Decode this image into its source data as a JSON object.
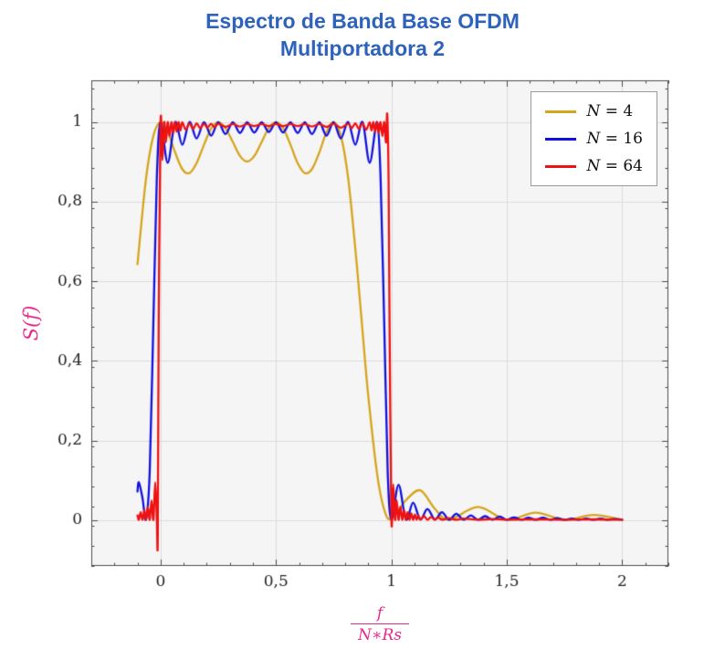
{
  "title": {
    "line1": "Espectro de Banda Base OFDM",
    "line2": "Multiportadora 2",
    "color": "#2E63BC"
  },
  "chart_data": {
    "type": "line",
    "title": "Espectro de Banda Base OFDM Multiportadora 2",
    "xlabel": "f/(N∗Rs)",
    "ylabel": "S(f)",
    "xlabel_numerator": "f",
    "xlabel_denominator": "N∗Rs",
    "legend_position": "top-right",
    "grid": true,
    "axes": {
      "xlim": [
        -0.3,
        2.2
      ],
      "ylim": [
        -0.115,
        1.105
      ],
      "x_ticks": [
        {
          "v": 0.0,
          "label": "0"
        },
        {
          "v": 0.5,
          "label": "0,5"
        },
        {
          "v": 1.0,
          "label": "1"
        },
        {
          "v": 1.5,
          "label": "1,5"
        },
        {
          "v": 2.0,
          "label": "2"
        }
      ],
      "y_ticks": [
        {
          "v": 0.0,
          "label": "0"
        },
        {
          "v": 0.2,
          "label": "0,2"
        },
        {
          "v": 0.4,
          "label": "0,4"
        },
        {
          "v": 0.6,
          "label": "0,6"
        },
        {
          "v": 0.8,
          "label": "0,8"
        },
        {
          "v": 1.0,
          "label": "1"
        }
      ],
      "x_minor_step": 0.1,
      "y_minor_step": 0.05,
      "label_color": "#E7298A",
      "plot_bg": "#F5F5F5",
      "grid_color": "#DCDCDC",
      "frame_color": "#4D4D4D",
      "tick_label_color": "#222222"
    },
    "series": [
      {
        "name": "N = 4",
        "color": "#D6A51E",
        "points": [
          [
            -0.1,
            0.643
          ],
          [
            -0.063,
            0.858
          ],
          [
            -0.031,
            0.966
          ],
          [
            0.0,
            1.0
          ],
          [
            0.031,
            0.975
          ],
          [
            0.063,
            0.924
          ],
          [
            0.094,
            0.882
          ],
          [
            0.125,
            0.872
          ],
          [
            0.156,
            0.897
          ],
          [
            0.188,
            0.943
          ],
          [
            0.219,
            0.984
          ],
          [
            0.25,
            1.0
          ],
          [
            0.281,
            0.985
          ],
          [
            0.313,
            0.95
          ],
          [
            0.344,
            0.915
          ],
          [
            0.375,
            0.901
          ],
          [
            0.406,
            0.915
          ],
          [
            0.438,
            0.95
          ],
          [
            0.469,
            0.985
          ],
          [
            0.5,
            1.0
          ],
          [
            0.531,
            0.985
          ],
          [
            0.563,
            0.943
          ],
          [
            0.594,
            0.897
          ],
          [
            0.625,
            0.872
          ],
          [
            0.656,
            0.882
          ],
          [
            0.688,
            0.924
          ],
          [
            0.719,
            0.975
          ],
          [
            0.75,
            1.0
          ],
          [
            0.781,
            0.966
          ],
          [
            0.813,
            0.858
          ],
          [
            0.85,
            0.643
          ],
          [
            0.875,
            0.475
          ],
          [
            0.9,
            0.311
          ],
          [
            0.938,
            0.117
          ],
          [
            0.969,
            0.026
          ],
          [
            1.0,
            0.003
          ],
          [
            1.063,
            0.05
          ],
          [
            1.125,
            0.075
          ],
          [
            1.188,
            0.029
          ],
          [
            1.25,
            0.001
          ],
          [
            1.375,
            0.033
          ],
          [
            1.5,
            0.001
          ],
          [
            1.625,
            0.019
          ],
          [
            1.75,
            0.001
          ],
          [
            1.875,
            0.013
          ],
          [
            2.0,
            0.001
          ]
        ]
      },
      {
        "name": "N = 16",
        "color": "#1010E0",
        "points": [
          [
            -0.1,
            0.072
          ],
          [
            -0.094,
            0.095
          ],
          [
            -0.078,
            0.055
          ],
          [
            -0.063,
            0.002
          ],
          [
            -0.047,
            0.122
          ],
          [
            -0.031,
            0.5
          ],
          [
            -0.016,
            0.863
          ],
          [
            0.0,
            1.0
          ],
          [
            0.031,
            0.898
          ],
          [
            0.063,
            1.0
          ],
          [
            0.094,
            0.943
          ],
          [
            0.125,
            1.0
          ],
          [
            0.156,
            0.959
          ],
          [
            0.188,
            1.0
          ],
          [
            0.219,
            0.966
          ],
          [
            0.25,
            1.0
          ],
          [
            0.281,
            0.97
          ],
          [
            0.313,
            1.0
          ],
          [
            0.344,
            0.973
          ],
          [
            0.375,
            1.0
          ],
          [
            0.406,
            0.974
          ],
          [
            0.438,
            1.0
          ],
          [
            0.469,
            0.975
          ],
          [
            0.5,
            1.0
          ],
          [
            0.531,
            0.974
          ],
          [
            0.563,
            1.0
          ],
          [
            0.594,
            0.973
          ],
          [
            0.625,
            1.0
          ],
          [
            0.656,
            0.97
          ],
          [
            0.688,
            1.0
          ],
          [
            0.719,
            0.966
          ],
          [
            0.75,
            1.0
          ],
          [
            0.781,
            0.959
          ],
          [
            0.813,
            1.0
          ],
          [
            0.844,
            0.943
          ],
          [
            0.875,
            1.0
          ],
          [
            0.906,
            0.898
          ],
          [
            0.938,
            1.0
          ],
          [
            0.953,
            0.863
          ],
          [
            0.969,
            0.493
          ],
          [
            0.984,
            0.122
          ],
          [
            1.0,
            0.002
          ],
          [
            1.031,
            0.089
          ],
          [
            1.063,
            0.002
          ],
          [
            1.094,
            0.044
          ],
          [
            1.125,
            0.002
          ],
          [
            1.156,
            0.028
          ],
          [
            1.188,
            0.002
          ],
          [
            1.219,
            0.02
          ],
          [
            1.25,
            0.001
          ],
          [
            1.281,
            0.016
          ],
          [
            1.313,
            0.001
          ],
          [
            1.344,
            0.012
          ],
          [
            1.375,
            0.001
          ],
          [
            1.406,
            0.01
          ],
          [
            1.438,
            0.001
          ],
          [
            1.469,
            0.009
          ],
          [
            1.5,
            0.001
          ],
          [
            1.531,
            0.007
          ],
          [
            1.563,
            0.001
          ],
          [
            1.594,
            0.006
          ],
          [
            1.625,
            0.001
          ],
          [
            1.656,
            0.006
          ],
          [
            1.688,
            0.001
          ],
          [
            1.719,
            0.005
          ],
          [
            1.75,
            0.001
          ],
          [
            1.781,
            0.004
          ],
          [
            1.813,
            0.001
          ],
          [
            1.844,
            0.004
          ],
          [
            1.875,
            0.001
          ],
          [
            1.906,
            0.004
          ],
          [
            1.938,
            0.001
          ],
          [
            1.969,
            0.003
          ],
          [
            2.0,
            0.001
          ]
        ]
      },
      {
        "name": "N = 64",
        "color": "#EE1212",
        "points": [
          [
            -0.1,
            0.012
          ],
          [
            -0.094,
            0.001
          ],
          [
            -0.086,
            0.02
          ],
          [
            -0.078,
            0.001
          ],
          [
            -0.07,
            0.025
          ],
          [
            -0.063,
            0.001
          ],
          [
            -0.055,
            0.034
          ],
          [
            -0.047,
            0.001
          ],
          [
            -0.039,
            0.05
          ],
          [
            -0.031,
            0.001
          ],
          [
            -0.023,
            0.095
          ],
          [
            -0.016,
            0.001
          ],
          [
            -0.012,
            -0.045
          ],
          [
            -0.008,
            0.5
          ],
          [
            0.0,
            1.0
          ],
          [
            0.008,
            0.904
          ],
          [
            0.016,
            1.0
          ],
          [
            0.023,
            0.949
          ],
          [
            0.031,
            1.0
          ],
          [
            0.039,
            0.965
          ],
          [
            0.047,
            1.0
          ],
          [
            0.055,
            0.973
          ],
          [
            0.063,
            1.0
          ],
          [
            0.07,
            0.976
          ],
          [
            0.078,
            1.0
          ],
          [
            0.086,
            0.979
          ],
          [
            0.094,
            1.0
          ],
          [
            0.109,
            0.981
          ],
          [
            0.125,
            0.997
          ],
          [
            0.141,
            0.983
          ],
          [
            0.156,
            0.997
          ],
          [
            0.172,
            0.985
          ],
          [
            0.188,
            0.996
          ],
          [
            0.203,
            0.986
          ],
          [
            0.219,
            0.996
          ],
          [
            0.234,
            0.987
          ],
          [
            0.25,
            0.996
          ],
          [
            0.281,
            0.988
          ],
          [
            0.313,
            0.995
          ],
          [
            0.344,
            0.989
          ],
          [
            0.375,
            0.995
          ],
          [
            0.406,
            0.99
          ],
          [
            0.438,
            0.995
          ],
          [
            0.469,
            0.99
          ],
          [
            0.5,
            0.995
          ],
          [
            0.531,
            0.99
          ],
          [
            0.563,
            0.995
          ],
          [
            0.594,
            0.99
          ],
          [
            0.625,
            0.995
          ],
          [
            0.656,
            0.989
          ],
          [
            0.688,
            0.995
          ],
          [
            0.719,
            0.988
          ],
          [
            0.75,
            0.996
          ],
          [
            0.781,
            0.986
          ],
          [
            0.813,
            0.996
          ],
          [
            0.828,
            0.985
          ],
          [
            0.844,
            0.997
          ],
          [
            0.859,
            0.983
          ],
          [
            0.875,
            0.997
          ],
          [
            0.891,
            0.981
          ],
          [
            0.906,
            1.0
          ],
          [
            0.914,
            0.979
          ],
          [
            0.922,
            1.0
          ],
          [
            0.93,
            0.976
          ],
          [
            0.938,
            1.0
          ],
          [
            0.945,
            0.973
          ],
          [
            0.953,
            1.0
          ],
          [
            0.961,
            0.965
          ],
          [
            0.969,
            1.0
          ],
          [
            0.977,
            0.949
          ],
          [
            0.982,
            1.02
          ],
          [
            0.988,
            0.85
          ],
          [
            0.992,
            0.5
          ],
          [
            1.0,
            0.001
          ],
          [
            1.008,
            0.09
          ],
          [
            1.016,
            0.001
          ],
          [
            1.023,
            0.05
          ],
          [
            1.031,
            0.001
          ],
          [
            1.039,
            0.034
          ],
          [
            1.047,
            0.001
          ],
          [
            1.055,
            0.025
          ],
          [
            1.063,
            0.001
          ],
          [
            1.07,
            0.02
          ],
          [
            1.078,
            0.001
          ],
          [
            1.086,
            0.017
          ],
          [
            1.094,
            0.001
          ],
          [
            1.102,
            0.014
          ],
          [
            1.109,
            0.001
          ],
          [
            1.117,
            0.012
          ],
          [
            1.125,
            0.001
          ],
          [
            1.141,
            0.01
          ],
          [
            1.156,
            0.001
          ],
          [
            1.172,
            0.008
          ],
          [
            1.188,
            0.001
          ],
          [
            1.203,
            0.007
          ],
          [
            1.219,
            0.001
          ],
          [
            1.25,
            0.005
          ],
          [
            1.281,
            0.001
          ],
          [
            1.313,
            0.004
          ],
          [
            1.375,
            0.001
          ],
          [
            1.438,
            0.003
          ],
          [
            1.5,
            0.001
          ],
          [
            1.625,
            0.002
          ],
          [
            1.75,
            0.001
          ],
          [
            1.875,
            0.002
          ],
          [
            2.0,
            0.001
          ]
        ]
      }
    ]
  }
}
